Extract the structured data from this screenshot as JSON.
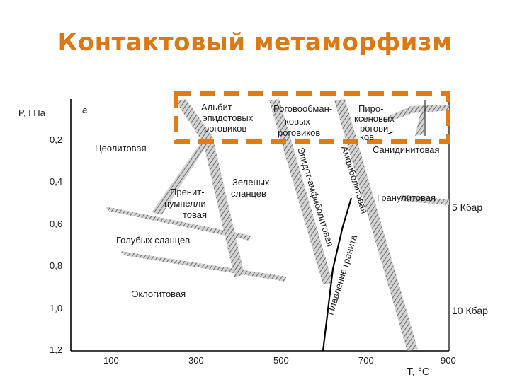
{
  "slide": {
    "title": "Контактовый метаморфизм"
  },
  "diagram": {
    "panel_letter": "а",
    "y_axis_label": "P, ГПа",
    "x_axis_label": "T, °С",
    "y_ticks": [
      "0,2",
      "0,4",
      "0,6",
      "0,8",
      "1,0",
      "1,2"
    ],
    "x_ticks": [
      "100",
      "300",
      "500",
      "700",
      "900"
    ],
    "pressure_marks": [
      "5 Кбар",
      "10 Кбар"
    ],
    "facies": {
      "albite_epidote_hornfels": [
        "Альбит-",
        "эпидотовых",
        "роговиков"
      ],
      "hornblende_hornfels": [
        "Роговообман-",
        "ковых",
        "роговиков"
      ],
      "pyroxene_hornfels": [
        "Пиро-",
        "ксеновых",
        "рогови-",
        "ков"
      ],
      "zeolite": "Цеолитовая",
      "sanidinite": "Санидинитовая",
      "greenschist": [
        "Зеленых",
        "сланцев"
      ],
      "prehnite_pumpellyite": [
        "Пренит-",
        "пумпелли-",
        "товая"
      ],
      "blueschist": "Голубых сланцев",
      "eclogite": "Эклогитовая",
      "granulite": "Гранулитовая",
      "epidote_amphibolite": "Эпидот-амфиболитовая",
      "amphibolite": "Амфиболитовая",
      "granite_melting": "Плавление гранита"
    },
    "highlight_color": "#e07b16",
    "band_color": "#b0b0b0"
  }
}
